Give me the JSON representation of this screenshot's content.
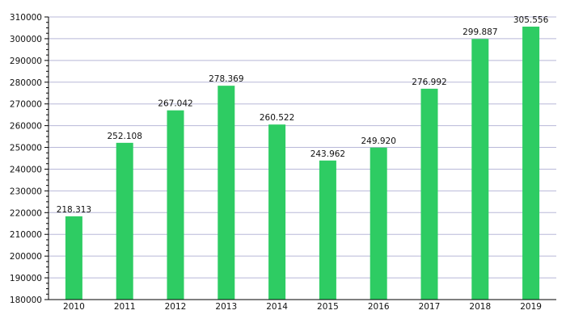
{
  "chart_data": {
    "type": "bar",
    "title": "",
    "xlabel": "",
    "ylabel": "",
    "categories": [
      "2010",
      "2011",
      "2012",
      "2013",
      "2014",
      "2015",
      "2016",
      "2017",
      "2018",
      "2019"
    ],
    "values": [
      218313,
      252108,
      267042,
      278369,
      260522,
      243962,
      249920,
      276992,
      299887,
      305556
    ],
    "data_labels": [
      "218.313",
      "252.108",
      "267.042",
      "278.369",
      "260.522",
      "243.962",
      "249.920",
      "276.992",
      "299.887",
      "305.556"
    ],
    "ylim": [
      180000,
      310000
    ],
    "y_ticks": [
      "180000",
      "190000",
      "200000",
      "210000",
      "220000",
      "230000",
      "240000",
      "250000",
      "260000",
      "270000",
      "280000",
      "290000",
      "300000",
      "310000"
    ],
    "grid": true,
    "bar_color": "#2ecc63",
    "grid_color": "#b8b8d8"
  }
}
